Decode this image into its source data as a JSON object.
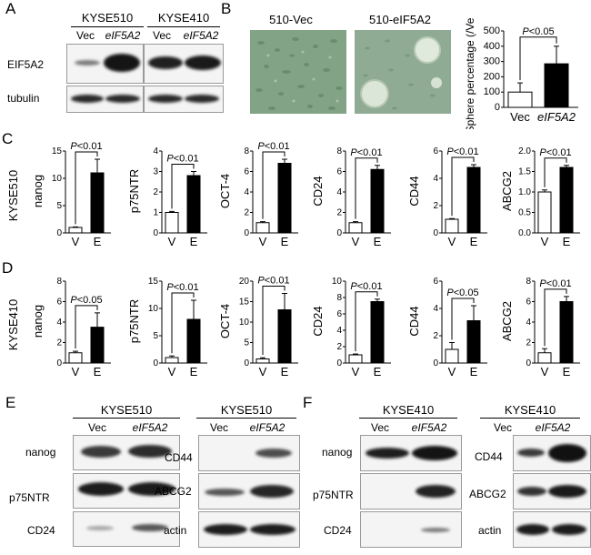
{
  "panels": {
    "A": "A",
    "B": "B",
    "C": "C",
    "D": "D",
    "E": "E",
    "F": "F"
  },
  "A": {
    "groups": [
      "KYSE510",
      "KYSE410"
    ],
    "lanes": [
      "Vec",
      "eIF5A2",
      "Vec",
      "eIF5A2"
    ],
    "rows": [
      "EIF5A2",
      "tubulin"
    ]
  },
  "B": {
    "images": [
      "510-Vec",
      "510-eIF5A2"
    ],
    "chart": {
      "type": "bar",
      "ylabel": "Sphere percentage (/Vec)",
      "categories": [
        "Vec",
        "eIF5A2"
      ],
      "values": [
        100,
        285
      ],
      "errors": [
        60,
        115
      ],
      "ylim": [
        0,
        500
      ],
      "yticks": [
        "0",
        "100",
        "200",
        "300",
        "400",
        "500"
      ],
      "sig": "P<0.05"
    }
  },
  "C": {
    "row_label": "KYSE510",
    "chart_data": [
      {
        "type": "bar",
        "ylabel": "nanog",
        "categories": [
          "V",
          "E"
        ],
        "values": [
          1,
          11
        ],
        "errors": [
          0.1,
          2.5
        ],
        "ylim": [
          0,
          15
        ],
        "yticks": [
          "0",
          "5",
          "10",
          "15"
        ],
        "sig": "P<0.01"
      },
      {
        "type": "bar",
        "ylabel": "p75NTR",
        "categories": [
          "V",
          "E"
        ],
        "values": [
          1,
          2.8
        ],
        "errors": [
          0.05,
          0.2
        ],
        "ylim": [
          0,
          4
        ],
        "yticks": [
          "0",
          "1",
          "2",
          "3",
          "4"
        ],
        "sig": "P<0.01"
      },
      {
        "type": "bar",
        "ylabel": "OCT-4",
        "categories": [
          "V",
          "E"
        ],
        "values": [
          1,
          6.8
        ],
        "errors": [
          0.1,
          0.4
        ],
        "ylim": [
          0,
          8
        ],
        "yticks": [
          "0",
          "2",
          "4",
          "6",
          "8"
        ],
        "sig": "P<0.01"
      },
      {
        "type": "bar",
        "ylabel": "CD24",
        "categories": [
          "V",
          "E"
        ],
        "values": [
          1,
          6.2
        ],
        "errors": [
          0.1,
          0.4
        ],
        "ylim": [
          0,
          8
        ],
        "yticks": [
          "0",
          "2",
          "4",
          "6",
          "8"
        ],
        "sig": "P<0.01"
      },
      {
        "type": "bar",
        "ylabel": "CD44",
        "categories": [
          "V",
          "E"
        ],
        "values": [
          1,
          4.8
        ],
        "errors": [
          0.05,
          0.2
        ],
        "ylim": [
          0,
          6
        ],
        "yticks": [
          "0",
          "2",
          "4",
          "6"
        ],
        "sig": "P<0.01"
      },
      {
        "type": "bar",
        "ylabel": "ABCG2",
        "categories": [
          "V",
          "E"
        ],
        "values": [
          1,
          1.6
        ],
        "errors": [
          0.05,
          0.05
        ],
        "ylim": [
          0,
          2
        ],
        "yticks": [
          "0.0",
          "0.5",
          "1.0",
          "1.5",
          "2.0"
        ],
        "sig": "P<0.01"
      }
    ]
  },
  "D": {
    "row_label": "KYSE410",
    "chart_data": [
      {
        "type": "bar",
        "ylabel": "nanog",
        "categories": [
          "V",
          "E"
        ],
        "values": [
          1,
          3.5
        ],
        "errors": [
          0.15,
          1.4
        ],
        "ylim": [
          0,
          8
        ],
        "yticks": [
          "0",
          "2",
          "4",
          "6",
          "8"
        ],
        "sig": "P<0.05"
      },
      {
        "type": "bar",
        "ylabel": "p75NTR",
        "categories": [
          "V",
          "E"
        ],
        "values": [
          1,
          8
        ],
        "errors": [
          0.3,
          3.5
        ],
        "ylim": [
          0,
          15
        ],
        "yticks": [
          "0",
          "5",
          "10",
          "15"
        ],
        "sig": "P<0.01"
      },
      {
        "type": "bar",
        "ylabel": "OCT-4",
        "categories": [
          "V",
          "E"
        ],
        "values": [
          1,
          13
        ],
        "errors": [
          0.3,
          4
        ],
        "ylim": [
          0,
          20
        ],
        "yticks": [
          "0",
          "5",
          "10",
          "15",
          "20"
        ],
        "sig": "P<0.01"
      },
      {
        "type": "bar",
        "ylabel": "CD24",
        "categories": [
          "V",
          "E"
        ],
        "values": [
          1,
          7.5
        ],
        "errors": [
          0.1,
          0.3
        ],
        "ylim": [
          0,
          10
        ],
        "yticks": [
          "0",
          "2",
          "4",
          "6",
          "8",
          "10"
        ],
        "sig": "P<0.01"
      },
      {
        "type": "bar",
        "ylabel": "CD44",
        "categories": [
          "V",
          "E"
        ],
        "values": [
          1,
          3.1
        ],
        "errors": [
          0.5,
          1.1
        ],
        "ylim": [
          0,
          6
        ],
        "yticks": [
          "0",
          "2",
          "4",
          "6"
        ],
        "sig": "P<0.05"
      },
      {
        "type": "bar",
        "ylabel": "ABCG2",
        "categories": [
          "V",
          "E"
        ],
        "values": [
          1,
          6
        ],
        "errors": [
          0.4,
          0.5
        ],
        "ylim": [
          0,
          8
        ],
        "yticks": [
          "0",
          "2",
          "4",
          "6",
          "8"
        ],
        "sig": "P<0.01"
      }
    ]
  },
  "E": {
    "left": {
      "group": "KYSE510",
      "lanes": [
        "Vec",
        "eIF5A2"
      ],
      "rows": [
        "nanog",
        "p75NTR",
        "CD24"
      ]
    },
    "right": {
      "group": "KYSE510",
      "lanes": [
        "Vec",
        "eIF5A2"
      ],
      "rows": [
        "CD44",
        "ABCG2",
        "actin"
      ]
    }
  },
  "F": {
    "left": {
      "group": "KYSE410",
      "lanes": [
        "Vec",
        "eIF5A2"
      ],
      "rows": [
        "nanog",
        "p75NTR",
        "CD24"
      ]
    },
    "right": {
      "group": "KYSE410",
      "lanes": [
        "Vec",
        "eIF5A2"
      ],
      "rows": [
        "CD44",
        "ABCG2",
        "actin"
      ]
    }
  },
  "colors": {
    "bar_vec": "#ffffff",
    "bar_e": "#000000",
    "blot_bg": "#f4f4f4",
    "band": "#1e1e1e",
    "micro": "#7f9f84"
  }
}
